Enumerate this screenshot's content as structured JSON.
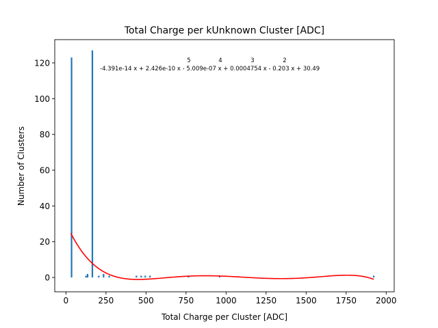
{
  "chart_data": {
    "type": "bar",
    "title": "Total Charge per kUnknown Cluster [ADC]",
    "xlabel": "Total Charge per Cluster [ADC]",
    "ylabel": "Number of Clusters",
    "xlim": [
      -70,
      2050
    ],
    "ylim": [
      -8,
      133
    ],
    "xticks": [
      0,
      250,
      500,
      750,
      1000,
      1250,
      1500,
      1750,
      2000
    ],
    "yticks": [
      0,
      20,
      40,
      60,
      80,
      100,
      120
    ],
    "grid": false,
    "bar_color": "#1f77b4",
    "fit_color": "#ff0000",
    "bars": [
      {
        "x": 35,
        "value": 123
      },
      {
        "x": 125,
        "value": 1
      },
      {
        "x": 135,
        "value": 2
      },
      {
        "x": 165,
        "value": 127
      },
      {
        "x": 205,
        "value": 1
      },
      {
        "x": 235,
        "value": 2
      },
      {
        "x": 270,
        "value": 1
      },
      {
        "x": 440,
        "value": 1
      },
      {
        "x": 470,
        "value": 1
      },
      {
        "x": 495,
        "value": 1
      },
      {
        "x": 525,
        "value": 1
      },
      {
        "x": 765,
        "value": 1
      },
      {
        "x": 960,
        "value": 1
      },
      {
        "x": 1922,
        "value": 1
      }
    ],
    "fit": {
      "coefficients": [
        -4.391e-14,
        2.426e-10,
        -5.009e-07,
        0.0004754,
        -0.203,
        30.49
      ],
      "x_range": [
        30,
        1922
      ],
      "equation_text": "-4.391e-14 x + 2.426e-10 x - 5.009e-07 x + 0.0004754 x - 0.203 x + 30.49",
      "exponents": [
        "5",
        "4",
        "3",
        "2"
      ]
    }
  }
}
